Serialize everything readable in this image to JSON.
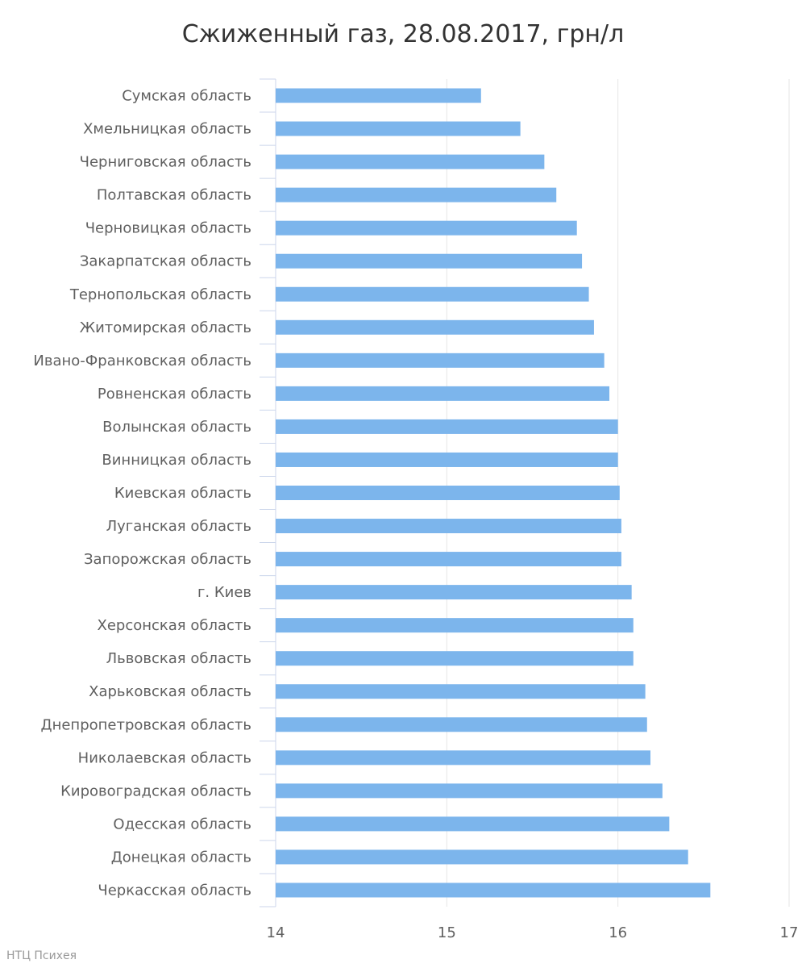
{
  "chart_data": {
    "type": "bar",
    "orientation": "horizontal",
    "title": "Сжиженный газ, 28.08.2017, грн/л",
    "xlabel": "",
    "ylabel": "",
    "xlim": [
      14,
      17
    ],
    "x_ticks": [
      "14",
      "15",
      "16",
      "17"
    ],
    "grid": true,
    "bar_color": "#7cb5ec",
    "categories": [
      "Сумская область",
      "Хмельницкая область",
      "Черниговская область",
      "Полтавская область",
      "Черновицкая область",
      "Закарпатская область",
      "Тернопольская область",
      "Житомирская область",
      "Ивано-Франковская область",
      "Ровненская область",
      "Волынская область",
      "Винницкая область",
      "Киевская область",
      "Луганская область",
      "Запорожская область",
      "г. Киев",
      "Херсонская область",
      "Львовская область",
      "Харьковская область",
      "Днепропетровская область",
      "Николаевская область",
      "Кировоградская область",
      "Одесская область",
      "Донецкая область",
      "Черкасская область"
    ],
    "values": [
      15.2,
      15.43,
      15.57,
      15.64,
      15.76,
      15.79,
      15.83,
      15.86,
      15.92,
      15.95,
      16.0,
      16.0,
      16.01,
      16.02,
      16.02,
      16.08,
      16.09,
      16.09,
      16.16,
      16.17,
      16.19,
      16.26,
      16.3,
      16.41,
      16.54
    ]
  },
  "credit": "НТЦ Психея"
}
